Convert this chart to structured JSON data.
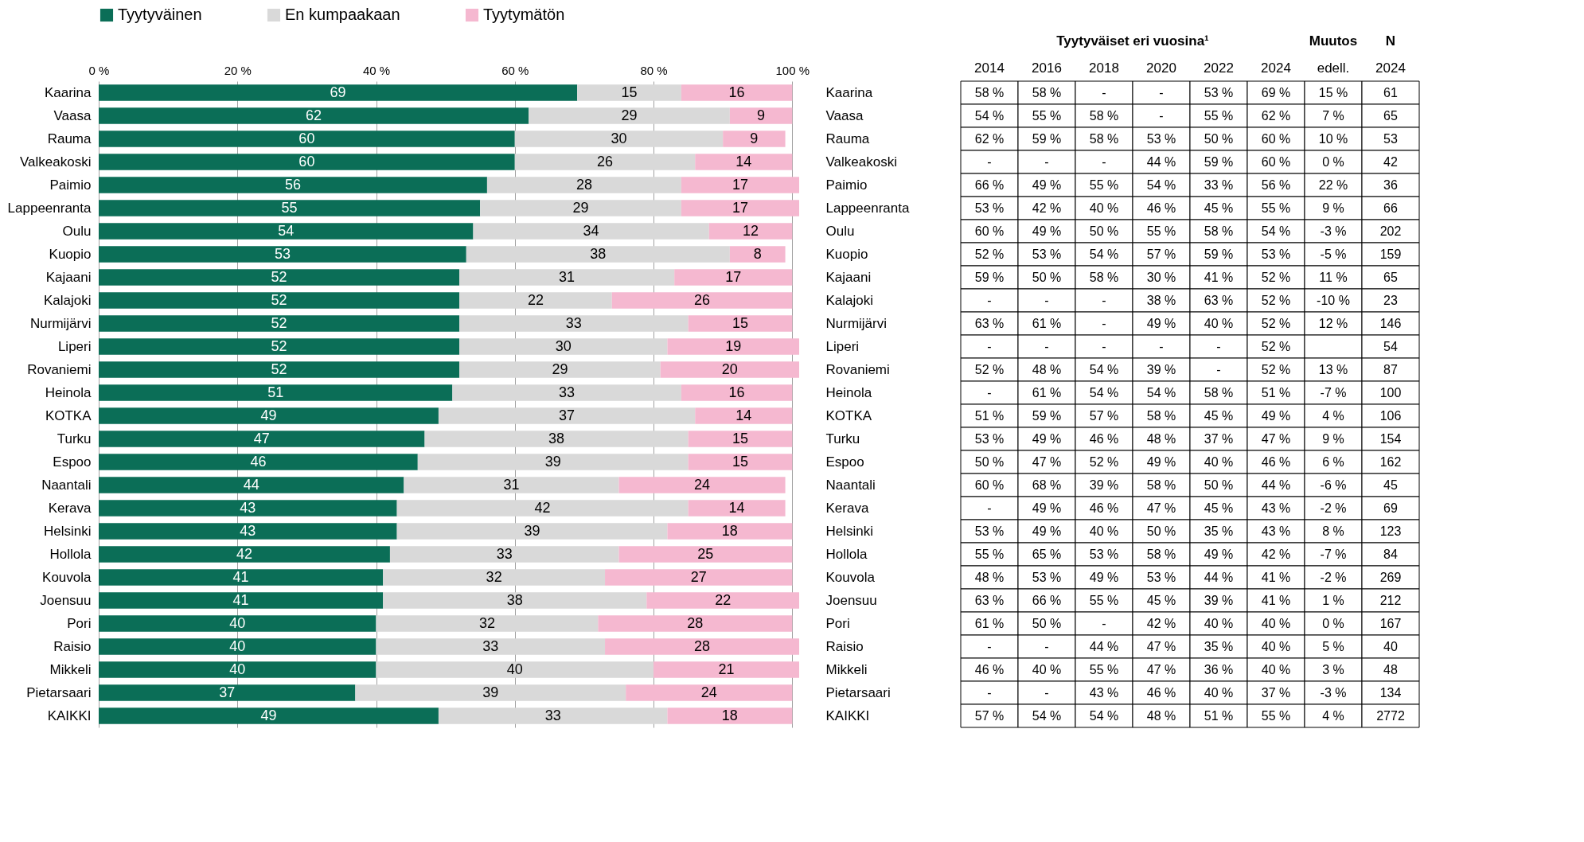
{
  "chart_data": [
    {
      "type": "bar",
      "orientation": "horizontal",
      "stacked": true,
      "data_labels": true,
      "grid": "x",
      "legend": "top",
      "categories": [
        "Kaarina",
        "Vaasa",
        "Rauma",
        "Valkeakoski",
        "Paimio",
        "Lappeenranta",
        "Oulu",
        "Kuopio",
        "Kajaani",
        "Kalajoki",
        "Nurmijärvi",
        "Liperi",
        "Rovaniemi",
        "Heinola",
        "KOTKA",
        "Turku",
        "Espoo",
        "Naantali",
        "Kerava",
        "Helsinki",
        "Hollola",
        "Kouvola",
        "Joensuu",
        "Pori",
        "Raisio",
        "Mikkeli",
        "Pietarsaari",
        "KAIKKI"
      ],
      "xlim": [
        0,
        101
      ],
      "xticks": [
        {
          "value": 0,
          "label": "0 %"
        },
        {
          "value": 20,
          "label": "20 %"
        },
        {
          "value": 40,
          "label": "40 %"
        },
        {
          "value": 60,
          "label": "60 %"
        },
        {
          "value": 80,
          "label": "80 %"
        },
        {
          "value": 100,
          "label": "100 %"
        }
      ],
      "series": [
        {
          "name": "Tyytyväinen",
          "color": "#0b6e57",
          "values": [
            69,
            62,
            60,
            60,
            56,
            55,
            54,
            53,
            52,
            52,
            52,
            52,
            52,
            51,
            49,
            47,
            46,
            44,
            43,
            43,
            42,
            41,
            41,
            40,
            40,
            40,
            37,
            49
          ]
        },
        {
          "name": "En kumpaakaan",
          "color": "#d9d9d9",
          "values": [
            15,
            29,
            30,
            26,
            28,
            29,
            34,
            38,
            31,
            22,
            33,
            30,
            29,
            33,
            37,
            38,
            39,
            31,
            42,
            39,
            33,
            32,
            38,
            32,
            33,
            40,
            39,
            33
          ]
        },
        {
          "name": "Tyytymätön",
          "color": "#f5b8d0",
          "values": [
            16,
            9,
            9,
            14,
            17,
            17,
            12,
            8,
            17,
            26,
            15,
            19,
            20,
            16,
            14,
            15,
            15,
            24,
            14,
            18,
            25,
            27,
            22,
            28,
            28,
            21,
            24,
            18
          ]
        }
      ]
    },
    {
      "type": "heatmap",
      "annotations": [
        "Tyytyväiset eri vuosina¹",
        "Muutos",
        "N"
      ],
      "categories": [
        "2014",
        "2016",
        "2018",
        "2020",
        "2022",
        "2024",
        "edell.",
        "2024"
      ],
      "y_categories": [
        "Kaarina",
        "Vaasa",
        "Rauma",
        "Valkeakoski",
        "Paimio",
        "Lappeenranta",
        "Oulu",
        "Kuopio",
        "Kajaani",
        "Kalajoki",
        "Nurmijärvi",
        "Liperi",
        "Rovaniemi",
        "Heinola",
        "KOTKA",
        "Turku",
        "Espoo",
        "Naantali",
        "Kerava",
        "Helsinki",
        "Hollola",
        "Kouvola",
        "Joensuu",
        "Pori",
        "Raisio",
        "Mikkeli",
        "Pietarsaari",
        "KAIKKI"
      ],
      "cells": [
        [
          58,
          58,
          null,
          null,
          53,
          69,
          15,
          61
        ],
        [
          54,
          55,
          58,
          null,
          55,
          62,
          7,
          65
        ],
        [
          62,
          59,
          58,
          53,
          50,
          60,
          10,
          53
        ],
        [
          null,
          null,
          null,
          44,
          59,
          60,
          0,
          42
        ],
        [
          66,
          49,
          55,
          54,
          33,
          56,
          22,
          36
        ],
        [
          53,
          42,
          40,
          46,
          45,
          55,
          9,
          66
        ],
        [
          60,
          49,
          50,
          55,
          58,
          54,
          -3,
          202
        ],
        [
          52,
          53,
          54,
          57,
          59,
          53,
          -5,
          159
        ],
        [
          59,
          50,
          58,
          30,
          41,
          52,
          11,
          65
        ],
        [
          null,
          null,
          null,
          38,
          63,
          52,
          -10,
          23
        ],
        [
          63,
          61,
          null,
          49,
          40,
          52,
          12,
          146
        ],
        [
          null,
          null,
          null,
          null,
          null,
          52,
          null,
          54
        ],
        [
          52,
          48,
          54,
          39,
          null,
          52,
          13,
          87
        ],
        [
          null,
          61,
          54,
          54,
          58,
          51,
          -7,
          100
        ],
        [
          51,
          59,
          57,
          58,
          45,
          49,
          4,
          106
        ],
        [
          53,
          49,
          46,
          48,
          37,
          47,
          9,
          154
        ],
        [
          50,
          47,
          52,
          49,
          40,
          46,
          6,
          162
        ],
        [
          60,
          68,
          39,
          58,
          50,
          44,
          -6,
          45
        ],
        [
          null,
          49,
          46,
          47,
          45,
          43,
          -2,
          69
        ],
        [
          53,
          49,
          40,
          50,
          35,
          43,
          8,
          123
        ],
        [
          55,
          65,
          53,
          58,
          49,
          42,
          -7,
          84
        ],
        [
          48,
          53,
          49,
          53,
          44,
          41,
          -2,
          269
        ],
        [
          63,
          66,
          55,
          45,
          39,
          41,
          1,
          212
        ],
        [
          61,
          50,
          null,
          42,
          40,
          40,
          0,
          167
        ],
        [
          null,
          null,
          44,
          47,
          35,
          40,
          5,
          40
        ],
        [
          46,
          40,
          55,
          47,
          36,
          40,
          3,
          48
        ],
        [
          null,
          null,
          43,
          46,
          40,
          37,
          -3,
          134
        ],
        [
          57,
          54,
          54,
          48,
          51,
          55,
          4,
          2772
        ]
      ],
      "cell_labels": [
        [
          "58 %",
          "58 %",
          "-",
          "-",
          "53 %",
          "69 %",
          "15 %",
          "61"
        ],
        [
          "54 %",
          "55 %",
          "58 %",
          "-",
          "55 %",
          "62 %",
          "7 %",
          "65"
        ],
        [
          "62 %",
          "59 %",
          "58 %",
          "53 %",
          "50 %",
          "60 %",
          "10 %",
          "53"
        ],
        [
          "-",
          "-",
          "-",
          "44 %",
          "59 %",
          "60 %",
          "0 %",
          "42"
        ],
        [
          "66 %",
          "49 %",
          "55 %",
          "54 %",
          "33 %",
          "56 %",
          "22 %",
          "36"
        ],
        [
          "53 %",
          "42 %",
          "40 %",
          "46 %",
          "45 %",
          "55 %",
          "9 %",
          "66"
        ],
        [
          "60 %",
          "49 %",
          "50 %",
          "55 %",
          "58 %",
          "54 %",
          "-3 %",
          "202"
        ],
        [
          "52 %",
          "53 %",
          "54 %",
          "57 %",
          "59 %",
          "53 %",
          "-5 %",
          "159"
        ],
        [
          "59 %",
          "50 %",
          "58 %",
          "30 %",
          "41 %",
          "52 %",
          "11 %",
          "65"
        ],
        [
          "-",
          "-",
          "-",
          "38 %",
          "63 %",
          "52 %",
          "-10 %",
          "23"
        ],
        [
          "63 %",
          "61 %",
          "-",
          "49 %",
          "40 %",
          "52 %",
          "12 %",
          "146"
        ],
        [
          "-",
          "-",
          "-",
          "-",
          "-",
          "52 %",
          null,
          "54"
        ],
        [
          "52 %",
          "48 %",
          "54 %",
          "39 %",
          "-",
          "52 %",
          "13 %",
          "87"
        ],
        [
          "-",
          "61 %",
          "54 %",
          "54 %",
          "58 %",
          "51 %",
          "-7 %",
          "100"
        ],
        [
          "51 %",
          "59 %",
          "57 %",
          "58 %",
          "45 %",
          "49 %",
          "4 %",
          "106"
        ],
        [
          "53 %",
          "49 %",
          "46 %",
          "48 %",
          "37 %",
          "47 %",
          "9 %",
          "154"
        ],
        [
          "50 %",
          "47 %",
          "52 %",
          "49 %",
          "40 %",
          "46 %",
          "6 %",
          "162"
        ],
        [
          "60 %",
          "68 %",
          "39 %",
          "58 %",
          "50 %",
          "44 %",
          "-6 %",
          "45"
        ],
        [
          "-",
          "49 %",
          "46 %",
          "47 %",
          "45 %",
          "43 %",
          "-2 %",
          "69"
        ],
        [
          "53 %",
          "49 %",
          "40 %",
          "50 %",
          "35 %",
          "43 %",
          "8 %",
          "123"
        ],
        [
          "55 %",
          "65 %",
          "53 %",
          "58 %",
          "49 %",
          "42 %",
          "-7 %",
          "84"
        ],
        [
          "48 %",
          "53 %",
          "49 %",
          "53 %",
          "44 %",
          "41 %",
          "-2 %",
          "269"
        ],
        [
          "63 %",
          "66 %",
          "55 %",
          "45 %",
          "39 %",
          "41 %",
          "1 %",
          "212"
        ],
        [
          "61 %",
          "50 %",
          "-",
          "42 %",
          "40 %",
          "40 %",
          "0 %",
          "167"
        ],
        [
          "-",
          "-",
          "44 %",
          "47 %",
          "35 %",
          "40 %",
          "5 %",
          "40"
        ],
        [
          "46 %",
          "40 %",
          "55 %",
          "47 %",
          "36 %",
          "40 %",
          "3 %",
          "48"
        ],
        [
          "-",
          "-",
          "43 %",
          "46 %",
          "40 %",
          "37 %",
          "-3 %",
          "134"
        ],
        [
          "57 %",
          "54 %",
          "54 %",
          "48 %",
          "51 %",
          "55 %",
          "4 %",
          "2772"
        ]
      ]
    }
  ]
}
